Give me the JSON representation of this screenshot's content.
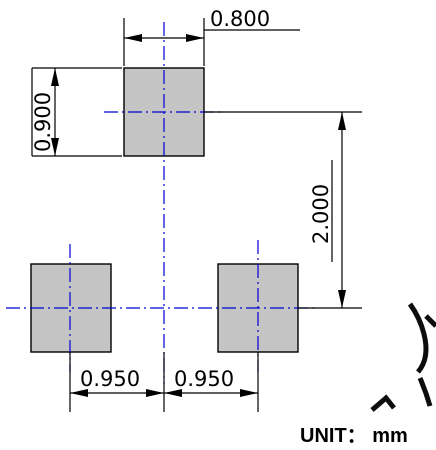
{
  "dimensions": {
    "pad_width": "0.800",
    "pad_height": "0.900",
    "vertical_pitch": "2.000",
    "left_horizontal_pitch": "0.950",
    "right_horizontal_pitch": "0.950"
  },
  "unit_label": "UNIT： mm",
  "colors": {
    "pad_fill": "#c4c4c4",
    "centerline": "#0000d0",
    "lines": "#000000"
  }
}
